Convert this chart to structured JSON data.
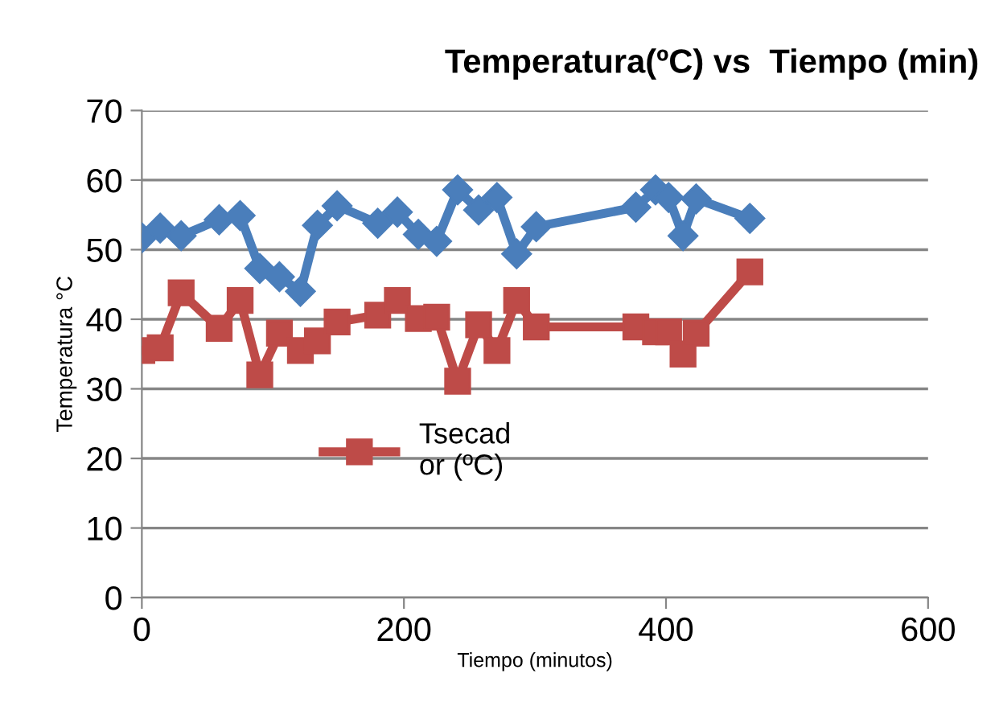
{
  "chart_data": {
    "type": "line",
    "title": "Temperatura(ºC) vs  Tiempo (min)",
    "xlabel": "Tiempo (minutos)",
    "ylabel": "Temperatura °C",
    "xlim": [
      0,
      600
    ],
    "xticks": [
      0,
      200,
      400,
      600
    ],
    "ylim": [
      0,
      70
    ],
    "yticks": [
      0,
      10,
      20,
      30,
      40,
      50,
      60,
      70
    ],
    "grid": "y",
    "legend": "center",
    "series": [
      {
        "color": "#4a7ebb",
        "marker": "diamond",
        "x": [
          0,
          14,
          30,
          59,
          75,
          90,
          105,
          121,
          134,
          149,
          180,
          195,
          211,
          225,
          241,
          257,
          271,
          286,
          301,
          377,
          392,
          402,
          413,
          423,
          464
        ],
        "values": [
          51.7,
          53.1,
          52.0,
          54.3,
          54.9,
          47.3,
          46.1,
          44.0,
          53.5,
          56.3,
          53.8,
          55.4,
          52.2,
          51.2,
          58.6,
          55.7,
          57.5,
          49.4,
          53.3,
          56.1,
          58.6,
          57.5,
          52.0,
          57.3,
          54.5
        ]
      },
      {
        "name": "Tsecad\nor (ºC)",
        "color": "#be4b48",
        "marker": "square",
        "x": [
          0,
          14,
          30,
          59,
          75,
          90,
          105,
          121,
          134,
          149,
          180,
          195,
          211,
          225,
          241,
          257,
          271,
          286,
          301,
          377,
          392,
          402,
          413,
          423,
          464
        ],
        "values": [
          35.5,
          35.9,
          43.8,
          38.7,
          42.7,
          32.0,
          38.0,
          35.5,
          36.9,
          39.6,
          40.6,
          42.7,
          40.1,
          40.3,
          31.1,
          39.2,
          35.5,
          42.7,
          38.9,
          38.9,
          38.2,
          38.2,
          35.0,
          38.0,
          46.8
        ]
      }
    ]
  }
}
